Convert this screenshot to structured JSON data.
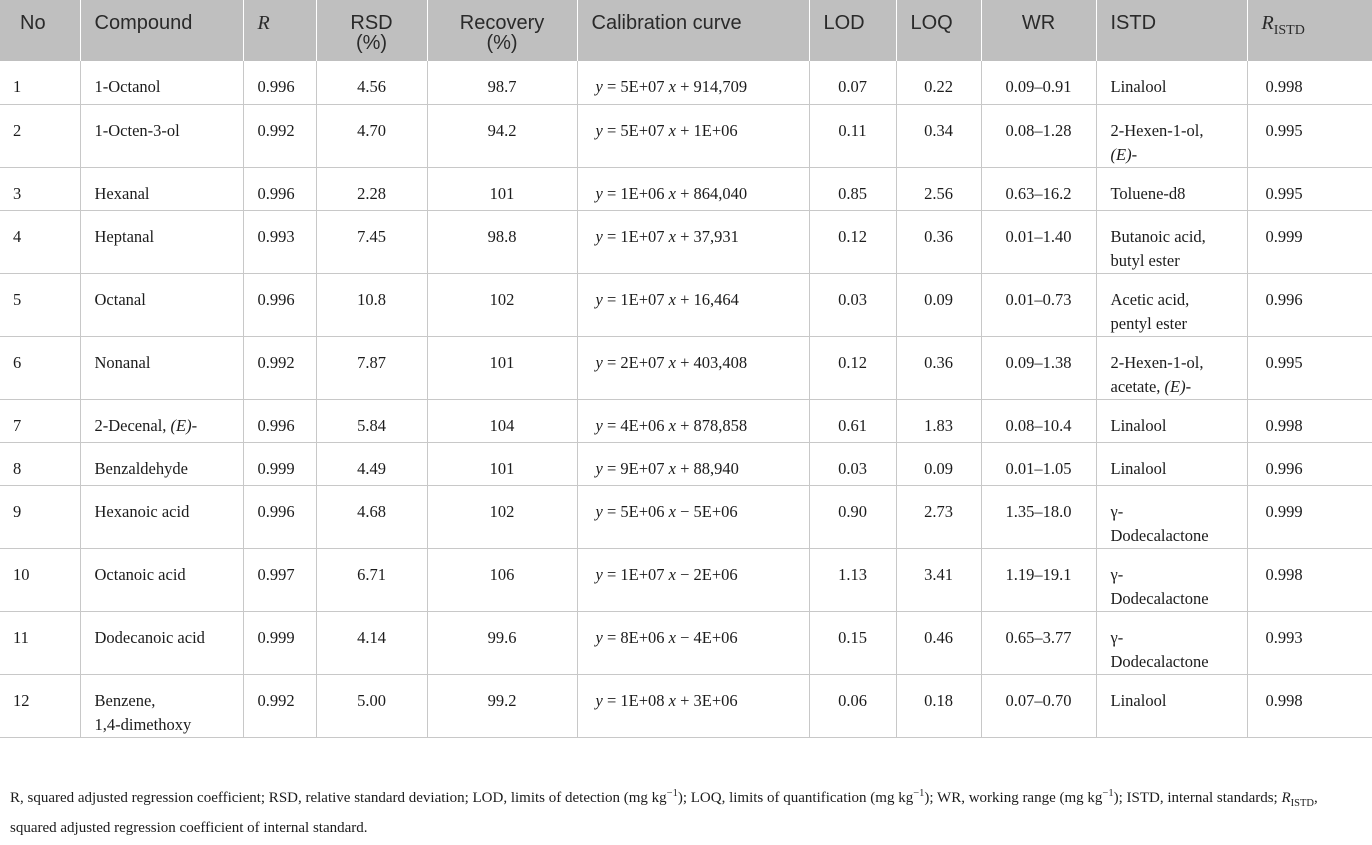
{
  "headers": {
    "no": "No",
    "compound": "Compound",
    "r": "R",
    "rsd_line1": "RSD",
    "rsd_line2": "(%)",
    "recovery_line1": "Recovery",
    "recovery_line2": "(%)",
    "calibration": "Calibration curve",
    "lod": "LOD",
    "loq": "LOQ",
    "wr": "WR",
    "istd": "ISTD",
    "r_istd_main": "R",
    "r_istd_sub": "ISTD"
  },
  "rows": [
    {
      "no": "1",
      "compound": "1-Octanol",
      "compound_suffix": "",
      "r": "0.996",
      "rsd": "4.56",
      "recovery": "98.7",
      "eq_coef": "5E+07",
      "eq_op": "+",
      "eq_const": "914,709",
      "lod": "0.07",
      "loq": "0.22",
      "wr": "0.09–0.91",
      "istd_line1": "Linalool",
      "istd_line2": "",
      "istd_line2_italic": "",
      "r_istd": "0.998"
    },
    {
      "no": "2",
      "compound": "1-Octen-3-ol",
      "compound_suffix": "",
      "r": "0.992",
      "rsd": "4.70",
      "recovery": "94.2",
      "eq_coef": "5E+07",
      "eq_op": "+",
      "eq_const": "1E+06",
      "lod": "0.11",
      "loq": "0.34",
      "wr": "0.08–1.28",
      "istd_line1": "2-Hexen-1-ol,",
      "istd_line2": "",
      "istd_line2_italic": "(E)-",
      "r_istd": "0.995"
    },
    {
      "no": "3",
      "compound": "Hexanal",
      "compound_suffix": "",
      "r": "0.996",
      "rsd": "2.28",
      "recovery": "101",
      "eq_coef": "1E+06",
      "eq_op": "+",
      "eq_const": "864,040",
      "lod": "0.85",
      "loq": "2.56",
      "wr": "0.63–16.2",
      "istd_line1": "Toluene-d8",
      "istd_line2": "",
      "istd_line2_italic": "",
      "r_istd": "0.995"
    },
    {
      "no": "4",
      "compound": "Heptanal",
      "compound_suffix": "",
      "r": "0.993",
      "rsd": "7.45",
      "recovery": "98.8",
      "eq_coef": "1E+07",
      "eq_op": "+",
      "eq_const": "37,931",
      "lod": "0.12",
      "loq": "0.36",
      "wr": "0.01–1.40",
      "istd_line1": "Butanoic acid,",
      "istd_line2": "butyl ester",
      "istd_line2_italic": "",
      "r_istd": "0.999"
    },
    {
      "no": "5",
      "compound": "Octanal",
      "compound_suffix": "",
      "r": "0.996",
      "rsd": "10.8",
      "recovery": "102",
      "eq_coef": "1E+07",
      "eq_op": "+",
      "eq_const": "16,464",
      "lod": "0.03",
      "loq": "0.09",
      "wr": "0.01–0.73",
      "istd_line1": "Acetic acid,",
      "istd_line2": "pentyl ester",
      "istd_line2_italic": "",
      "r_istd": "0.996"
    },
    {
      "no": "6",
      "compound": "Nonanal",
      "compound_suffix": "",
      "r": "0.992",
      "rsd": "7.87",
      "recovery": "101",
      "eq_coef": "2E+07",
      "eq_op": "+",
      "eq_const": "403,408",
      "lod": "0.12",
      "loq": "0.36",
      "wr": "0.09–1.38",
      "istd_line1": "2-Hexen-1-ol,",
      "istd_line2": "acetate, ",
      "istd_line2_italic": "(E)-",
      "r_istd": "0.995"
    },
    {
      "no": "7",
      "compound": "2-Decenal, ",
      "compound_suffix": "(E)-",
      "r": "0.996",
      "rsd": "5.84",
      "recovery": "104",
      "eq_coef": "4E+06",
      "eq_op": "+",
      "eq_const": "878,858",
      "lod": "0.61",
      "loq": "1.83",
      "wr": "0.08–10.4",
      "istd_line1": "Linalool",
      "istd_line2": "",
      "istd_line2_italic": "",
      "r_istd": "0.998"
    },
    {
      "no": "8",
      "compound": "Benzaldehyde",
      "compound_suffix": "",
      "r": "0.999",
      "rsd": "4.49",
      "recovery": "101",
      "eq_coef": "9E+07",
      "eq_op": "+",
      "eq_const": "88,940",
      "lod": "0.03",
      "loq": "0.09",
      "wr": "0.01–1.05",
      "istd_line1": "Linalool",
      "istd_line2": "",
      "istd_line2_italic": "",
      "r_istd": "0.996"
    },
    {
      "no": "9",
      "compound": "Hexanoic acid",
      "compound_suffix": "",
      "r": "0.996",
      "rsd": "4.68",
      "recovery": "102",
      "eq_coef": "5E+06",
      "eq_op": "−",
      "eq_const": "5E+06",
      "lod": "0.90",
      "loq": "2.73",
      "wr": "1.35–18.0",
      "istd_line1": "γ-",
      "istd_line2": "Dodecalactone",
      "istd_line2_italic": "",
      "r_istd": "0.999"
    },
    {
      "no": "10",
      "compound": "Octanoic acid",
      "compound_suffix": "",
      "r": "0.997",
      "rsd": "6.71",
      "recovery": "106",
      "eq_coef": "1E+07",
      "eq_op": "−",
      "eq_const": "2E+06",
      "lod": "1.13",
      "loq": "3.41",
      "wr": "1.19–19.1",
      "istd_line1": "γ-",
      "istd_line2": "Dodecalactone",
      "istd_line2_italic": "",
      "r_istd": "0.998"
    },
    {
      "no": "11",
      "compound": "Dodecanoic acid",
      "compound_suffix": "",
      "r": "0.999",
      "rsd": "4.14",
      "recovery": "99.6",
      "eq_coef": "8E+06",
      "eq_op": "−",
      "eq_const": "4E+06",
      "lod": "0.15",
      "loq": "0.46",
      "wr": "0.65–3.77",
      "istd_line1": "γ-",
      "istd_line2": "Dodecalactone",
      "istd_line2_italic": "",
      "r_istd": "0.993"
    },
    {
      "no": "12",
      "compound": "Benzene,",
      "compound_line2": "1,4-dimethoxy",
      "compound_suffix": "",
      "r": "0.992",
      "rsd": "5.00",
      "recovery": "99.2",
      "eq_coef": "1E+08",
      "eq_op": "+",
      "eq_const": "3E+06",
      "lod": "0.06",
      "loq": "0.18",
      "wr": "0.07–0.70",
      "istd_line1": "Linalool",
      "istd_line2": "",
      "istd_line2_italic": "",
      "r_istd": "0.998"
    }
  ],
  "equation": {
    "y": "y",
    "eq": "=",
    "x": "x"
  },
  "footnote": {
    "part1": "R, squared adjusted regression coefficient; RSD, relative standard deviation; LOD, limits of detection (mg kg",
    "sup1": "−1",
    "part2": "); LOQ, limits of quantification (mg kg",
    "sup2": "−1",
    "part3": "); WR, working range (mg kg",
    "sup3": "−1",
    "part4": "); ISTD, internal standards; ",
    "r_main": "R",
    "r_sub": "ISTD",
    "part5": ", squared adjusted regression coefficient of internal standard."
  }
}
